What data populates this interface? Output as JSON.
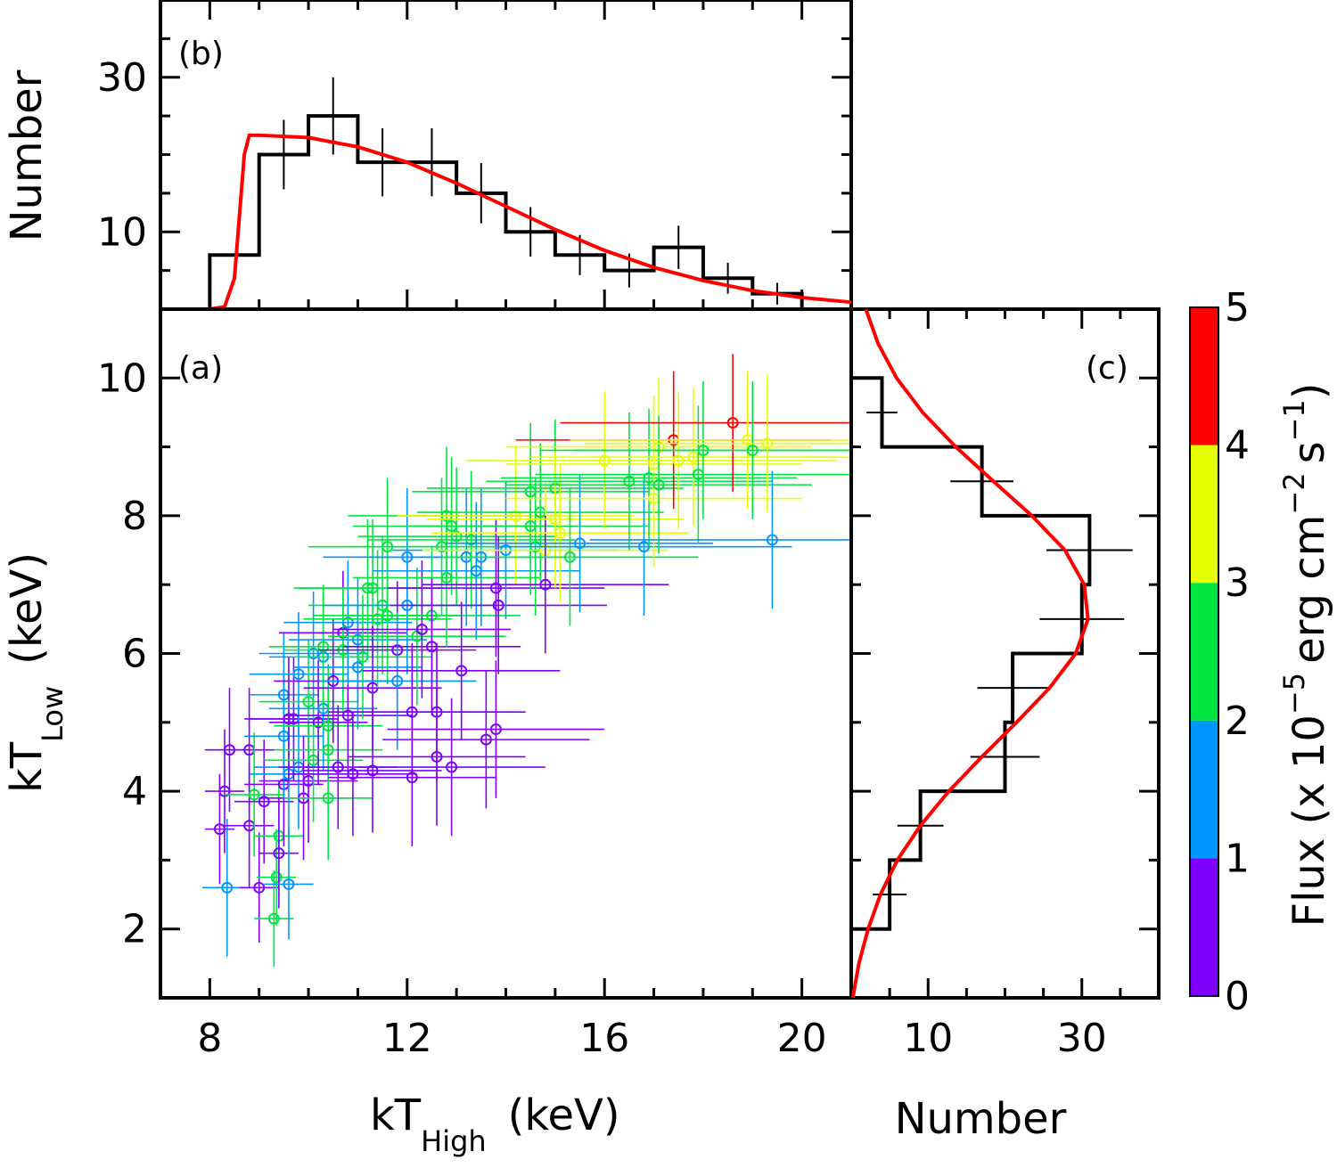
{
  "chart_data": [
    {
      "panel": "a",
      "type": "scatter",
      "panel_label": "(a)",
      "xlabel": "kT",
      "xlabel_sub": "High",
      "xlabel_unit": "(keV)",
      "ylabel": "kT",
      "ylabel_sub": "Low",
      "ylabel_unit": "(keV)",
      "xlim": [
        7,
        21
      ],
      "ylim": [
        1,
        11
      ],
      "xticks": [
        8,
        12,
        16,
        20
      ],
      "yticks": [
        2,
        4,
        6,
        8,
        10
      ],
      "colorbar": {
        "label": "Flux (x 10",
        "label_exp": "−5",
        "label_unit": "erg cm",
        "label_unit_exp": "−2",
        "label_s": "s",
        "label_s_exp": "−1",
        "range": [
          0,
          5
        ],
        "ticks": [
          0,
          1,
          2,
          3,
          4,
          5
        ],
        "bands": [
          "#7f00ff",
          "#0096ff",
          "#00e640",
          "#e6ff00",
          "#ff0000"
        ]
      },
      "points": [
        [
          8.2,
          3.45,
          0.3,
          0.8,
          0.5
        ],
        [
          8.3,
          4.0,
          0.4,
          0.9,
          0.5
        ],
        [
          8.4,
          4.6,
          0.5,
          0.9,
          0.5
        ],
        [
          8.35,
          2.6,
          0.5,
          1.0,
          1.5
        ],
        [
          8.8,
          4.6,
          0.6,
          0.9,
          0.5
        ],
        [
          8.8,
          3.5,
          0.5,
          0.9,
          0.5
        ],
        [
          8.9,
          3.95,
          0.6,
          0.9,
          2.5
        ],
        [
          9.0,
          2.6,
          0.4,
          0.8,
          0.5
        ],
        [
          9.1,
          3.85,
          0.6,
          0.9,
          0.5
        ],
        [
          9.3,
          2.15,
          0.4,
          0.7,
          2.5
        ],
        [
          9.35,
          2.75,
          0.4,
          0.7,
          2.5
        ],
        [
          9.4,
          3.35,
          0.5,
          0.8,
          2.5
        ],
        [
          9.4,
          3.1,
          0.4,
          0.8,
          0.5
        ],
        [
          9.5,
          4.1,
          0.8,
          0.9,
          0.5
        ],
        [
          9.5,
          4.8,
          0.8,
          0.9,
          1.5
        ],
        [
          9.5,
          5.4,
          0.7,
          0.9,
          1.5
        ],
        [
          9.6,
          2.65,
          0.5,
          0.8,
          1.5
        ],
        [
          9.6,
          4.25,
          0.8,
          0.9,
          1.5
        ],
        [
          9.6,
          5.05,
          0.9,
          0.9,
          0.5
        ],
        [
          9.7,
          5.05,
          0.9,
          0.9,
          0.5
        ],
        [
          9.8,
          5.7,
          1.0,
          0.9,
          1.5
        ],
        [
          9.8,
          4.35,
          0.9,
          0.9,
          1.5
        ],
        [
          9.9,
          3.9,
          0.9,
          0.9,
          0.5
        ],
        [
          10.0,
          4.15,
          1.0,
          0.9,
          0.5
        ],
        [
          10.0,
          5.3,
          1.0,
          0.9,
          2.5
        ],
        [
          10.1,
          6.0,
          1.1,
          0.9,
          1.5
        ],
        [
          10.1,
          4.45,
          1.0,
          0.9,
          2.5
        ],
        [
          10.2,
          5.0,
          1.0,
          0.9,
          0.5
        ],
        [
          10.3,
          5.2,
          1.1,
          0.9,
          1.5
        ],
        [
          10.3,
          5.95,
          1.1,
          0.9,
          1.5
        ],
        [
          10.3,
          6.1,
          1.1,
          0.9,
          2.5
        ],
        [
          10.4,
          3.9,
          0.9,
          0.9,
          2.5
        ],
        [
          10.4,
          4.95,
          1.1,
          0.9,
          2.5
        ],
        [
          10.4,
          4.6,
          1.1,
          0.9,
          2.5
        ],
        [
          10.5,
          5.6,
          1.2,
          0.9,
          0.5
        ],
        [
          10.6,
          4.35,
          1.2,
          0.9,
          0.5
        ],
        [
          10.7,
          6.3,
          1.3,
          0.9,
          0.5
        ],
        [
          10.7,
          6.05,
          1.2,
          0.9,
          2.5
        ],
        [
          10.8,
          5.1,
          1.3,
          0.9,
          0.5
        ],
        [
          10.8,
          6.45,
          1.3,
          0.9,
          1.5
        ],
        [
          10.9,
          4.25,
          1.3,
          0.9,
          0.5
        ],
        [
          11.0,
          6.2,
          1.4,
          0.9,
          1.5
        ],
        [
          11.0,
          5.8,
          1.3,
          0.9,
          1.5
        ],
        [
          11.1,
          5.95,
          1.4,
          0.9,
          2.5
        ],
        [
          11.2,
          6.95,
          1.5,
          1.0,
          2.5
        ],
        [
          11.3,
          6.95,
          1.5,
          1.0,
          2.5
        ],
        [
          11.3,
          5.5,
          1.4,
          0.9,
          0.5
        ],
        [
          11.3,
          4.3,
          1.4,
          0.9,
          0.5
        ],
        [
          11.4,
          6.5,
          1.5,
          1.0,
          2.5
        ],
        [
          11.5,
          6.7,
          1.5,
          1.0,
          2.5
        ],
        [
          11.6,
          7.55,
          1.6,
          1.0,
          2.5
        ],
        [
          11.6,
          6.55,
          1.5,
          1.0,
          2.5
        ],
        [
          11.8,
          6.05,
          1.6,
          1.0,
          0.5
        ],
        [
          11.8,
          5.6,
          1.6,
          1.0,
          1.5
        ],
        [
          12.0,
          7.4,
          1.7,
          1.0,
          1.5
        ],
        [
          12.0,
          6.7,
          1.7,
          1.0,
          1.5
        ],
        [
          12.1,
          5.15,
          1.7,
          1.0,
          0.5
        ],
        [
          12.1,
          4.2,
          1.7,
          1.0,
          0.5
        ],
        [
          12.2,
          6.25,
          1.8,
          1.0,
          2.5
        ],
        [
          12.3,
          6.35,
          1.8,
          1.0,
          0.5
        ],
        [
          12.5,
          6.55,
          1.8,
          1.0,
          2.5
        ],
        [
          12.5,
          6.1,
          1.8,
          1.0,
          0.5
        ],
        [
          12.6,
          4.5,
          1.8,
          1.0,
          0.5
        ],
        [
          12.6,
          5.15,
          1.8,
          1.0,
          0.5
        ],
        [
          12.7,
          7.55,
          1.9,
          1.0,
          2.5
        ],
        [
          12.8,
          7.1,
          1.9,
          1.0,
          2.5
        ],
        [
          12.8,
          8.0,
          2.0,
          1.0,
          2.5
        ],
        [
          12.9,
          7.85,
          2.0,
          1.0,
          2.5
        ],
        [
          12.9,
          4.35,
          1.9,
          1.0,
          0.5
        ],
        [
          13.0,
          7.7,
          2.0,
          1.0,
          2.5
        ],
        [
          13.1,
          5.75,
          2.0,
          1.0,
          0.5
        ],
        [
          13.2,
          7.4,
          2.0,
          1.0,
          1.5
        ],
        [
          13.3,
          7.65,
          2.1,
          1.0,
          2.5
        ],
        [
          13.4,
          7.2,
          2.1,
          1.0,
          1.5
        ],
        [
          13.5,
          7.4,
          2.1,
          1.0,
          1.5
        ],
        [
          13.6,
          4.75,
          2.1,
          1.0,
          0.5
        ],
        [
          13.8,
          6.95,
          2.2,
          1.0,
          0.5
        ],
        [
          13.8,
          4.9,
          2.2,
          1.0,
          0.5
        ],
        [
          13.85,
          6.7,
          2.2,
          1.0,
          0.5
        ],
        [
          14.0,
          7.5,
          2.3,
          1.0,
          1.5
        ],
        [
          14.2,
          8.0,
          2.4,
          1.0,
          3.5
        ],
        [
          14.5,
          8.35,
          2.4,
          1.0,
          2.5
        ],
        [
          14.5,
          7.85,
          2.4,
          1.0,
          2.5
        ],
        [
          14.6,
          7.55,
          2.5,
          1.0,
          2.5
        ],
        [
          14.7,
          8.05,
          2.5,
          1.0,
          2.5
        ],
        [
          14.8,
          7.5,
          2.5,
          1.0,
          3.5
        ],
        [
          14.8,
          7.0,
          2.5,
          1.0,
          0.5
        ],
        [
          15.0,
          8.4,
          2.6,
          1.0,
          2.5
        ],
        [
          15.0,
          7.95,
          2.6,
          1.0,
          3.5
        ],
        [
          15.1,
          7.75,
          2.6,
          1.0,
          3.5
        ],
        [
          15.3,
          7.4,
          2.6,
          1.0,
          2.5
        ],
        [
          15.5,
          7.6,
          2.7,
          1.0,
          1.5
        ],
        [
          16.0,
          8.8,
          2.8,
          1.0,
          3.5
        ],
        [
          16.5,
          8.5,
          2.9,
          1.0,
          2.5
        ],
        [
          16.8,
          7.55,
          3.0,
          1.0,
          1.5
        ],
        [
          16.9,
          8.55,
          3.0,
          1.0,
          2.5
        ],
        [
          17.0,
          8.75,
          3.0,
          1.0,
          3.5
        ],
        [
          17.0,
          8.25,
          3.0,
          1.0,
          3.5
        ],
        [
          17.1,
          9.0,
          3.1,
          1.0,
          3.5
        ],
        [
          17.1,
          8.45,
          3.1,
          1.0,
          2.5
        ],
        [
          17.4,
          9.1,
          3.2,
          1.0,
          4.5
        ],
        [
          17.5,
          8.8,
          3.2,
          1.0,
          3.5
        ],
        [
          17.8,
          8.85,
          3.3,
          1.0,
          3.5
        ],
        [
          17.9,
          8.6,
          3.3,
          1.0,
          2.5
        ],
        [
          18.0,
          8.95,
          3.3,
          1.0,
          2.5
        ],
        [
          18.6,
          9.35,
          3.5,
          1.0,
          4.5
        ],
        [
          18.9,
          9.1,
          3.6,
          1.0,
          3.5
        ],
        [
          19.0,
          8.95,
          3.6,
          1.0,
          2.5
        ],
        [
          19.3,
          9.05,
          3.7,
          1.0,
          3.5
        ],
        [
          19.4,
          7.65,
          3.7,
          1.0,
          1.5
        ]
      ]
    },
    {
      "panel": "b",
      "type": "histogram",
      "panel_label": "(b)",
      "ylabel": "Number",
      "xlim": [
        7,
        21
      ],
      "ylim": [
        0,
        40
      ],
      "yticks": [
        10,
        30
      ],
      "bin_edges": [
        8,
        8.5,
        9,
        9.5,
        10,
        10.5,
        11,
        11.5,
        12,
        12.5,
        13,
        13.5,
        14,
        14.5,
        15,
        15.5,
        16,
        16.5,
        17,
        17.5,
        18,
        18.5,
        19,
        19.5,
        20
      ],
      "counts": [
        7,
        7,
        20,
        20,
        25,
        25,
        19,
        19,
        19,
        19,
        15,
        15,
        10,
        10,
        7,
        7,
        5,
        5,
        8,
        8,
        4,
        4,
        2,
        2
      ],
      "error_bars": [
        {
          "x": 9.5,
          "y": 20,
          "err": 4.5
        },
        {
          "x": 10.5,
          "y": 25,
          "err": 5.0
        },
        {
          "x": 11.5,
          "y": 19,
          "err": 4.4
        },
        {
          "x": 12.5,
          "y": 19,
          "err": 4.4
        },
        {
          "x": 13.5,
          "y": 15,
          "err": 3.9
        },
        {
          "x": 14.5,
          "y": 10,
          "err": 3.2
        },
        {
          "x": 15.5,
          "y": 7,
          "err": 2.6
        },
        {
          "x": 16.5,
          "y": 5,
          "err": 2.2
        },
        {
          "x": 17.5,
          "y": 8,
          "err": 2.8
        },
        {
          "x": 18.5,
          "y": 4,
          "err": 2.0
        },
        {
          "x": 19.5,
          "y": 2,
          "err": 1.4
        }
      ],
      "model_curve": [
        [
          7,
          0
        ],
        [
          8.0,
          0
        ],
        [
          8.3,
          0.3
        ],
        [
          8.5,
          4
        ],
        [
          8.6,
          12
        ],
        [
          8.7,
          20
        ],
        [
          8.8,
          22.5
        ],
        [
          9.0,
          22.5
        ],
        [
          10.0,
          22.2
        ],
        [
          11.0,
          21.0
        ],
        [
          12.0,
          19.0
        ],
        [
          13.0,
          16.3
        ],
        [
          14.0,
          13.3
        ],
        [
          15.0,
          10.3
        ],
        [
          16.0,
          7.6
        ],
        [
          17.0,
          5.4
        ],
        [
          18.0,
          3.7
        ],
        [
          19.0,
          2.4
        ],
        [
          20.0,
          1.5
        ],
        [
          21.0,
          0.9
        ]
      ]
    },
    {
      "panel": "c",
      "type": "histogram",
      "orientation": "horizontal",
      "panel_label": "(c)",
      "xlabel": "Number",
      "xlim": [
        0,
        40
      ],
      "ylim": [
        1,
        11
      ],
      "xticks": [
        10,
        30
      ],
      "bin_edges": [
        2,
        3,
        4,
        5,
        6,
        7,
        8,
        9,
        10
      ],
      "counts": [
        5,
        9,
        20,
        21,
        30,
        31,
        17,
        4
      ],
      "error_bars": [
        {
          "y": 2.5,
          "x": 5,
          "err": 2.2
        },
        {
          "y": 3.5,
          "x": 9,
          "err": 3.0
        },
        {
          "y": 4.5,
          "x": 20,
          "err": 4.5
        },
        {
          "y": 5.5,
          "x": 21,
          "err": 4.6
        },
        {
          "y": 6.5,
          "x": 30,
          "err": 5.5
        },
        {
          "y": 7.5,
          "x": 31,
          "err": 5.6
        },
        {
          "y": 8.5,
          "x": 17,
          "err": 4.1
        },
        {
          "y": 9.5,
          "x": 4,
          "err": 2.0
        }
      ],
      "model_curve": [
        [
          1.0,
          0.2
        ],
        [
          1.5,
          1.0
        ],
        [
          2.0,
          2.2
        ],
        [
          2.5,
          3.8
        ],
        [
          3.0,
          6.0
        ],
        [
          3.5,
          9.0
        ],
        [
          4.0,
          12.7
        ],
        [
          4.5,
          17.0
        ],
        [
          5.0,
          21.5
        ],
        [
          5.5,
          25.8
        ],
        [
          6.0,
          29.2
        ],
        [
          6.5,
          30.8
        ],
        [
          7.0,
          30.3
        ],
        [
          7.5,
          27.8
        ],
        [
          8.0,
          23.5
        ],
        [
          8.5,
          18.5
        ],
        [
          9.0,
          13.6
        ],
        [
          9.5,
          9.3
        ],
        [
          10.0,
          5.9
        ],
        [
          10.5,
          3.5
        ],
        [
          11.0,
          1.9
        ]
      ]
    }
  ]
}
